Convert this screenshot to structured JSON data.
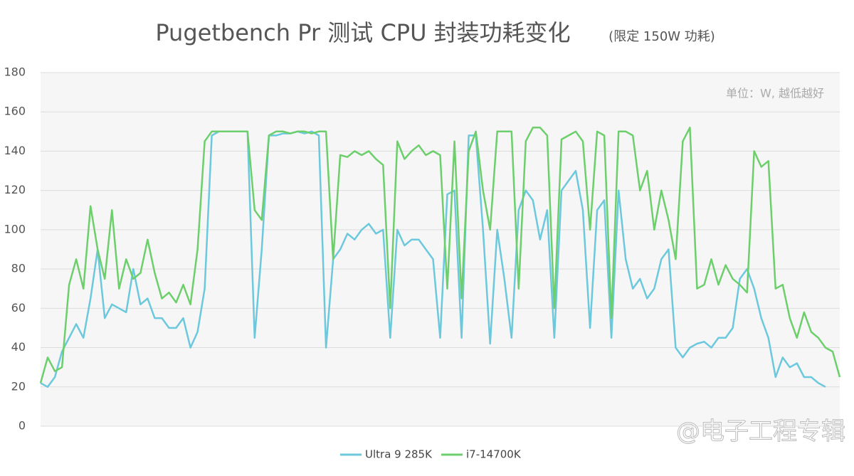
{
  "chart_data": {
    "type": "line",
    "title": "Pugetbench Pr 测试 CPU 封装功耗变化",
    "subtitle": "(限定 150W 功耗)",
    "annotation": "单位：W, 越低越好",
    "watermark": "@电子工程专辑",
    "categories": [
      null,
      null,
      null,
      null,
      null,
      null,
      null,
      null,
      null,
      null,
      null,
      null,
      null,
      null,
      null,
      null,
      null,
      null,
      null,
      null,
      null,
      null,
      null,
      null,
      null,
      null,
      null,
      null,
      null,
      null,
      null,
      null,
      null,
      null,
      null,
      null,
      null,
      null,
      null,
      null,
      null,
      null,
      null,
      null,
      null,
      null,
      null,
      null,
      null,
      null,
      null,
      null,
      null,
      null,
      null,
      null,
      null,
      null,
      null,
      null,
      null,
      null,
      null,
      null,
      null,
      null,
      null,
      null,
      null,
      null,
      null,
      null,
      null,
      null,
      null,
      null,
      null,
      null,
      null,
      null,
      null,
      null,
      null,
      null,
      null,
      null,
      null,
      null,
      null,
      null,
      null,
      null,
      null,
      null,
      null,
      null,
      null,
      null,
      null,
      null,
      null,
      null,
      null,
      null,
      null,
      null,
      null,
      null,
      null,
      null,
      null,
      null,
      null
    ],
    "series": [
      {
        "name": "Ultra 9 285K",
        "color": "#6cc8dc",
        "values": [
          22,
          20,
          25,
          38,
          45,
          52,
          45,
          65,
          90,
          55,
          62,
          60,
          58,
          80,
          62,
          65,
          55,
          55,
          50,
          50,
          55,
          40,
          48,
          70,
          148,
          150,
          150,
          150,
          150,
          150,
          45,
          90,
          148,
          148,
          149,
          149,
          150,
          149,
          150,
          148,
          40,
          85,
          90,
          98,
          95,
          100,
          103,
          98,
          100,
          45,
          100,
          92,
          95,
          95,
          90,
          85,
          45,
          118,
          120,
          45,
          148,
          148,
          100,
          42,
          100,
          75,
          45,
          110,
          120,
          115,
          95,
          110,
          45,
          120,
          125,
          130,
          110,
          50,
          110,
          115,
          45,
          120,
          85,
          70,
          75,
          65,
          70,
          85,
          90,
          40,
          35,
          40,
          42,
          43,
          40,
          45,
          45,
          50,
          75,
          80,
          70,
          55,
          45,
          25,
          35,
          30,
          32,
          25,
          25,
          22,
          20,
          null,
          null
        ]
      },
      {
        "name": "i7-14700K",
        "color": "#6ccf6c",
        "values": [
          22,
          35,
          28,
          30,
          72,
          85,
          70,
          112,
          90,
          75,
          110,
          70,
          85,
          75,
          78,
          95,
          78,
          65,
          68,
          63,
          72,
          62,
          90,
          145,
          150,
          150,
          150,
          150,
          150,
          150,
          110,
          105,
          148,
          150,
          150,
          149,
          150,
          150,
          149,
          150,
          150,
          85,
          138,
          137,
          140,
          138,
          140,
          136,
          133,
          60,
          145,
          136,
          140,
          143,
          138,
          140,
          138,
          70,
          145,
          65,
          140,
          150,
          120,
          100,
          150,
          150,
          150,
          70,
          145,
          152,
          152,
          148,
          60,
          146,
          148,
          150,
          145,
          100,
          150,
          148,
          55,
          150,
          150,
          148,
          120,
          130,
          100,
          120,
          105,
          85,
          145,
          152,
          70,
          72,
          85,
          72,
          82,
          75,
          72,
          68,
          140,
          132,
          135,
          70,
          72,
          55,
          45,
          58,
          48,
          45,
          40,
          38,
          25
        ]
      }
    ],
    "ylim": [
      0,
      180
    ],
    "yticks": [
      0,
      20,
      40,
      60,
      80,
      100,
      120,
      140,
      160,
      180
    ],
    "grid": true,
    "legend": "bottom"
  }
}
